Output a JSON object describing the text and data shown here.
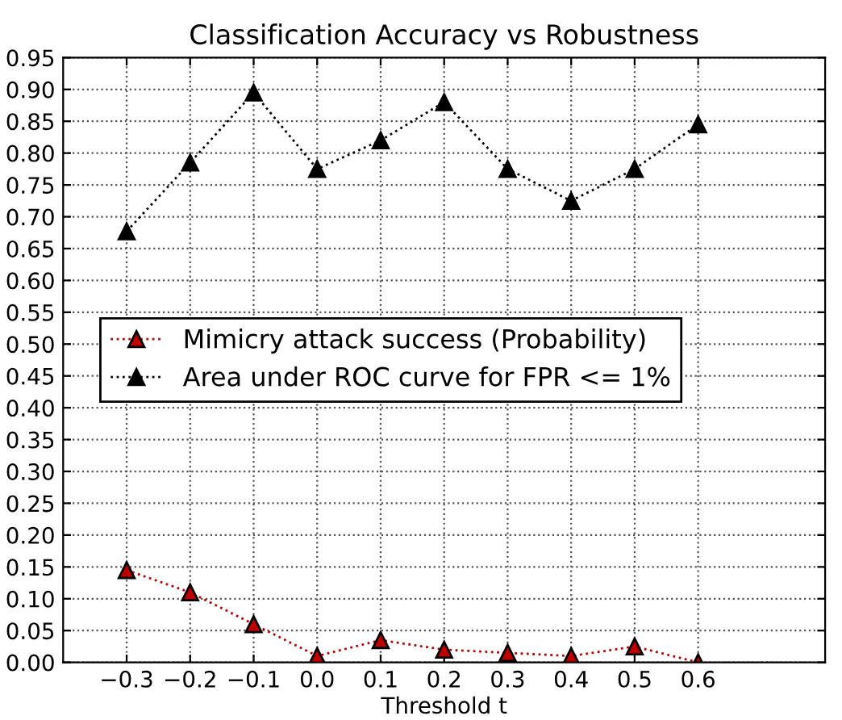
{
  "chart_data": {
    "type": "line",
    "title": "Classification Accuracy vs Robustness",
    "xlabel": "Threshold t",
    "x": [
      -0.3,
      -0.2,
      -0.1,
      0.0,
      0.1,
      0.2,
      0.3,
      0.4,
      0.5,
      0.6
    ],
    "series": [
      {
        "name": "Mimicry attack success (Probability)",
        "color": "#c00000",
        "values": [
          0.145,
          0.11,
          0.06,
          0.01,
          0.035,
          0.02,
          0.015,
          0.01,
          0.025,
          0.0
        ]
      },
      {
        "name": "Area under ROC curve for FPR <= 1%",
        "color": "#000000",
        "values": [
          0.677,
          0.785,
          0.895,
          0.775,
          0.82,
          0.88,
          0.775,
          0.725,
          0.775,
          0.845
        ]
      }
    ],
    "xlim": [
      -0.4,
      0.8
    ],
    "xticks": [
      {
        "value": -0.3,
        "label": "−0.3"
      },
      {
        "value": -0.2,
        "label": "−0.2"
      },
      {
        "value": -0.1,
        "label": "−0.1"
      },
      {
        "value": 0.0,
        "label": "0.0"
      },
      0.1,
      0.2,
      0.3,
      0.4,
      0.5,
      0.6
    ],
    "ylim": [
      0,
      0.95
    ],
    "yticks": [
      {
        "value": 0,
        "label": "0.00"
      },
      0.05,
      {
        "value": 0.1,
        "label": "0.10"
      },
      0.15,
      {
        "value": 0.2,
        "label": "0.20"
      },
      0.25,
      {
        "value": 0.3,
        "label": "0.30"
      },
      0.35,
      {
        "value": 0.4,
        "label": "0.40"
      },
      0.45,
      {
        "value": 0.5,
        "label": "0.50"
      },
      0.55,
      {
        "value": 0.6,
        "label": "0.60"
      },
      0.65,
      {
        "value": 0.7,
        "label": "0.70"
      },
      0.75,
      {
        "value": 0.8,
        "label": "0.80"
      },
      0.85,
      {
        "value": 0.9,
        "label": "0.90"
      },
      0.95
    ],
    "grid": true,
    "legend": "center",
    "marker": "triangle",
    "line_style": "dotted"
  }
}
